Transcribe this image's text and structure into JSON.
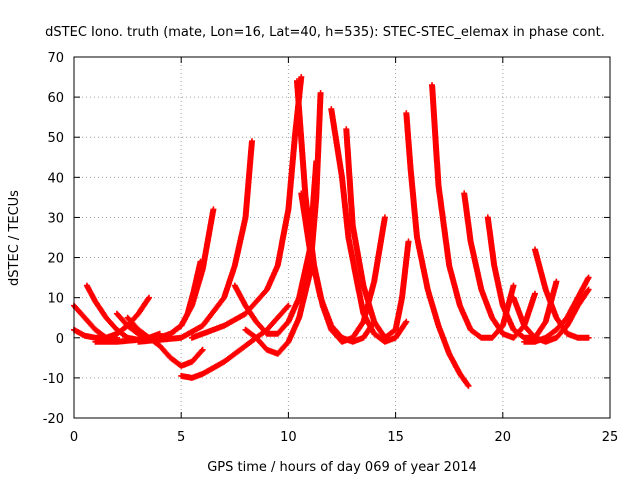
{
  "chart_data": {
    "type": "scatter",
    "title": "dSTEC Iono. truth (mate, Lon=16, Lat=40, h=535): STEC-STEC_elemax in phase cont.",
    "xlabel": "GPS time / hours of day 069 of year 2014",
    "ylabel": "dSTEC  / TECUs",
    "xlim": [
      0,
      25
    ],
    "ylim": [
      -20,
      70
    ],
    "xticks": [
      "0",
      "5",
      "10",
      "15",
      "20",
      "25"
    ],
    "yticks": [
      "-20",
      "-10",
      "0",
      "10",
      "20",
      "30",
      "40",
      "50",
      "60",
      "70"
    ],
    "grid": true,
    "marker": "+",
    "color": "#ff0000",
    "series": [
      {
        "x": [
          0.0,
          0.5,
          1.0,
          1.5,
          2.0
        ],
        "y": [
          8,
          5,
          2,
          0,
          0
        ]
      },
      {
        "x": [
          0.0,
          0.5,
          1.0,
          1.5,
          2.0,
          2.5,
          3.0,
          3.5
        ],
        "y": [
          2,
          0.5,
          0,
          0,
          1,
          3,
          6,
          10
        ]
      },
      {
        "x": [
          0.6,
          1.0,
          1.5,
          2.0,
          2.5,
          3.0,
          3.5,
          4.0
        ],
        "y": [
          13,
          9,
          5,
          2,
          0,
          -0.5,
          0,
          1
        ]
      },
      {
        "x": [
          2.0,
          2.5,
          3.0,
          3.5,
          4.0,
          4.5,
          5.0,
          5.5,
          6.0,
          6.5
        ],
        "y": [
          6,
          3,
          1,
          0,
          0,
          1,
          3,
          8,
          17,
          32
        ]
      },
      {
        "x": [
          1.0,
          2.0,
          3.0,
          4.0,
          4.5,
          5.0,
          5.3,
          5.6,
          5.9
        ],
        "y": [
          -1,
          -1,
          -0.5,
          0,
          1,
          3,
          6,
          12,
          19
        ]
      },
      {
        "x": [
          2.5,
          3.0,
          3.5,
          4.0,
          4.5,
          5.0,
          5.5,
          6.0
        ],
        "y": [
          5,
          2,
          0,
          -2,
          -5,
          -7,
          -6,
          -3
        ]
      },
      {
        "x": [
          5.0,
          5.5,
          6.0,
          7.0,
          8.0,
          9.0,
          10.0
        ],
        "y": [
          -9.5,
          -10,
          -9,
          -6,
          -2,
          2,
          8
        ]
      },
      {
        "x": [
          3.0,
          4.0,
          5.0,
          6.0,
          7.0,
          7.5,
          8.0,
          8.3
        ],
        "y": [
          -1,
          -0.5,
          0,
          3,
          10,
          18,
          30,
          49
        ]
      },
      {
        "x": [
          5.5,
          6.0,
          7.0,
          8.0,
          9.0,
          9.5,
          10.0,
          10.3,
          10.6
        ],
        "y": [
          0,
          1,
          3,
          6,
          12,
          18,
          32,
          50,
          65
        ]
      },
      {
        "x": [
          7.5,
          8.0,
          8.5,
          9.0,
          9.5,
          10.0,
          10.5,
          11.0,
          11.3
        ],
        "y": [
          13,
          8,
          4,
          1,
          1,
          4,
          10,
          22,
          44
        ]
      },
      {
        "x": [
          8.0,
          8.5,
          9.0,
          9.5,
          10.0,
          10.5,
          11.0,
          11.3,
          11.5
        ],
        "y": [
          2,
          0,
          -3,
          -4,
          -1,
          5,
          16,
          35,
          61
        ]
      },
      {
        "x": [
          10.6,
          11.0,
          11.5,
          12.0,
          12.5,
          13.0,
          13.5,
          14.0
        ],
        "y": [
          36,
          22,
          10,
          3,
          0,
          -1,
          0,
          4
        ]
      },
      {
        "x": [
          10.4,
          10.8,
          11.2,
          11.6,
          12.0,
          12.5,
          13.0,
          13.5,
          14.0,
          14.5
        ],
        "y": [
          64,
          35,
          18,
          8,
          2,
          -1,
          0,
          4,
          14,
          30
        ]
      },
      {
        "x": [
          12.0,
          12.5,
          12.8,
          13.2,
          13.5,
          14.0,
          14.5,
          15.0,
          15.5
        ],
        "y": [
          57,
          40,
          25,
          14,
          6,
          1,
          -1,
          0,
          4
        ]
      },
      {
        "x": [
          12.7,
          13.0,
          13.5,
          14.0,
          14.5,
          15.0,
          15.3,
          15.6
        ],
        "y": [
          52,
          28,
          13,
          4,
          0,
          2,
          10,
          24
        ]
      },
      {
        "x": [
          15.5,
          15.7,
          16.0,
          16.5,
          17.0,
          17.5,
          18.0,
          18.4
        ],
        "y": [
          56,
          42,
          25,
          12,
          3,
          -4,
          -9,
          -12
        ]
      },
      {
        "x": [
          16.7,
          17.0,
          17.5,
          18.0,
          18.5,
          19.0,
          19.5,
          20.0,
          20.5
        ],
        "y": [
          63,
          38,
          18,
          8,
          2,
          0,
          0,
          3,
          13
        ]
      },
      {
        "x": [
          18.2,
          18.5,
          19.0,
          19.5,
          20.0,
          20.5,
          21.0,
          21.5
        ],
        "y": [
          36,
          24,
          12,
          5,
          1,
          0,
          3,
          11
        ]
      },
      {
        "x": [
          19.3,
          19.6,
          20.0,
          20.5,
          21.0,
          21.5,
          22.0,
          22.5
        ],
        "y": [
          30,
          18,
          8,
          2,
          0,
          0,
          4,
          14
        ]
      },
      {
        "x": [
          21.5,
          22.0,
          22.5,
          23.0,
          23.5,
          24.0
        ],
        "y": [
          22,
          12,
          5,
          1,
          0,
          0
        ]
      },
      {
        "x": [
          20.5,
          21.0,
          21.5,
          22.0,
          22.5,
          23.0,
          23.5,
          24.0
        ],
        "y": [
          10,
          3,
          0,
          -1,
          0,
          3,
          8,
          12
        ]
      },
      {
        "x": [
          21.0,
          21.5,
          22.0,
          22.5,
          23.0,
          23.5,
          24.0
        ],
        "y": [
          -1,
          -1,
          0,
          2,
          5,
          10,
          15
        ]
      }
    ]
  }
}
